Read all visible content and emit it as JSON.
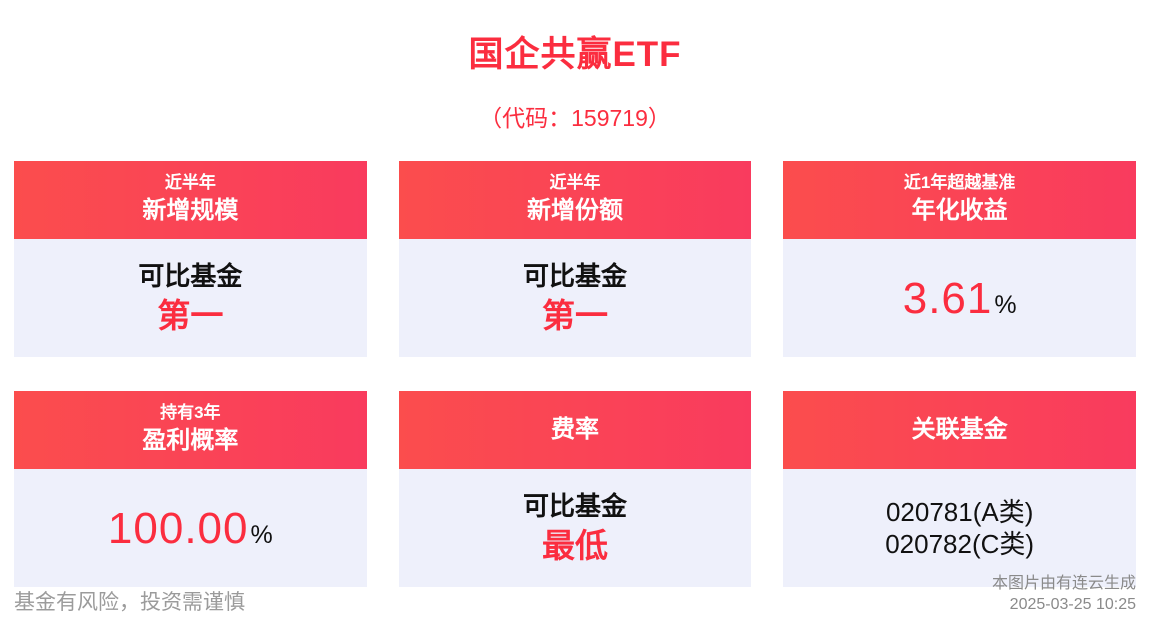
{
  "title": "国企共赢ETF",
  "subtitle": "（代码：159719）",
  "colors": {
    "accent_red": "#fb2d3f",
    "header_gradient_start": "#fb4d4d",
    "header_gradient_end": "#f93b5e",
    "card_body_bg": "#eef0fb",
    "footer_text": "#9b9b9b"
  },
  "cards": [
    {
      "header_line1": "近半年",
      "header_line2": "新增规模",
      "body_label": "可比基金",
      "highlight": "第一"
    },
    {
      "header_line1": "近半年",
      "header_line2": "新增份额",
      "body_label": "可比基金",
      "highlight": "第一"
    },
    {
      "header_line1": "近1年超越基准",
      "header_line2": "年化收益",
      "value": "3.61",
      "unit": "%"
    },
    {
      "header_line1": "持有3年",
      "header_line2": "盈利概率",
      "value": "100.00",
      "unit": "%"
    },
    {
      "header": "费率",
      "body_label": "可比基金",
      "highlight": "最低"
    },
    {
      "header": "关联基金",
      "line1": "020781(A类)",
      "line2": "020782(C类)"
    }
  ],
  "footer": {
    "disclaimer": "基金有风险，投资需谨慎",
    "source": "本图片由有连云生成",
    "timestamp": "2025-03-25 10:25"
  }
}
